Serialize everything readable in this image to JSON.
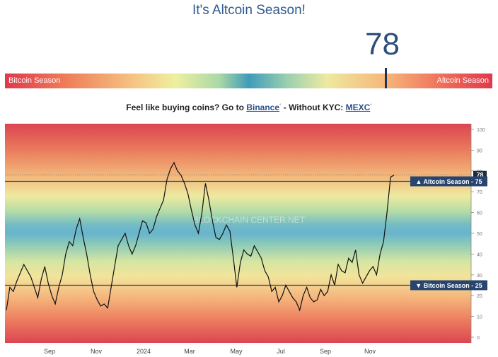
{
  "header": {
    "title": "It's Altcoin Season!",
    "score": "78"
  },
  "gauge": {
    "left_label": "Bitcoin Season",
    "right_label": "Altcoin Season",
    "value": 78
  },
  "promo": {
    "prefix": "Feel like buying coins? Go to",
    "link1": "Binance",
    "middle": " - Without KYC: ",
    "link2": "MEXC",
    "sup": "°"
  },
  "chart_data": {
    "type": "line",
    "ylim": [
      0,
      100
    ],
    "yticks": [
      0,
      10,
      20,
      30,
      40,
      50,
      60,
      70,
      80,
      90,
      100
    ],
    "xticks": [
      "Sep",
      "Nov",
      "2024",
      "Mar",
      "May",
      "Jul",
      "Sep",
      "Nov"
    ],
    "watermark": "BLOCKCHAIN CENTER.NET",
    "current_value": "78",
    "thresholds": [
      {
        "label": "▲ Altcoin Season - 75",
        "value": 75
      },
      {
        "label": "▼ Bitcoin Season - 25",
        "value": 25
      }
    ],
    "series": [
      {
        "values": [
          13,
          24,
          22,
          27,
          31,
          35,
          32,
          29,
          24,
          19,
          28,
          34,
          26,
          20,
          16,
          24,
          30,
          40,
          46,
          44,
          52,
          57,
          48,
          40,
          30,
          22,
          18,
          15,
          16,
          14,
          24,
          34,
          44,
          47,
          50,
          44,
          40,
          44,
          50,
          56,
          55,
          50,
          52,
          58,
          62,
          66,
          76,
          81,
          84,
          80,
          78,
          74,
          69,
          61,
          54,
          50,
          60,
          74,
          66,
          56,
          48,
          47,
          50,
          54,
          51,
          38,
          24,
          36,
          42,
          40,
          39,
          44,
          41,
          38,
          32,
          29,
          22,
          24,
          17,
          20,
          25,
          22,
          19,
          17,
          13,
          20,
          24,
          19,
          17,
          18,
          23,
          20,
          22,
          30,
          25,
          35,
          32,
          31,
          38,
          36,
          42,
          30,
          26,
          29,
          32,
          34,
          30,
          40,
          46,
          60,
          77,
          78
        ]
      }
    ]
  }
}
